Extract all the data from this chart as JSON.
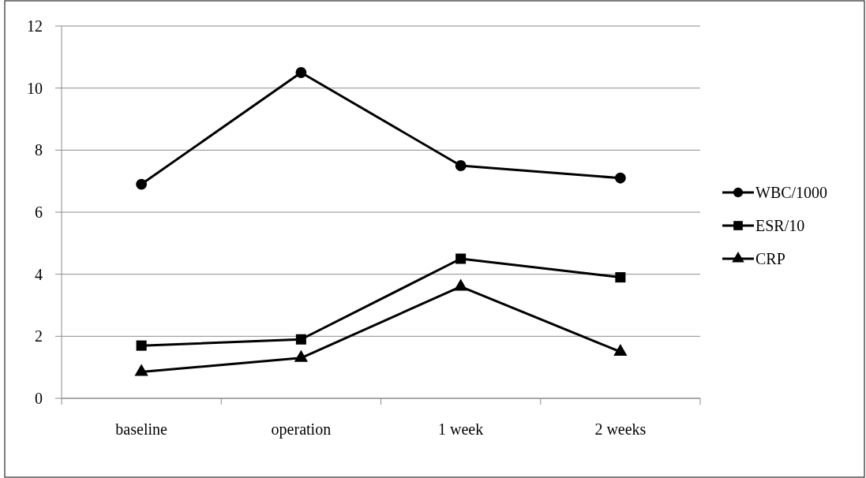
{
  "chart_data": {
    "type": "line",
    "categories": [
      "baseline",
      "operation",
      "1 week",
      "2 weeks"
    ],
    "series": [
      {
        "name": "WBC/1000",
        "color": "#000000",
        "marker": "circle",
        "values": [
          6.9,
          10.5,
          7.5,
          7.1
        ]
      },
      {
        "name": "ESR/10",
        "color": "#000000",
        "marker": "square",
        "values": [
          1.7,
          1.9,
          4.5,
          3.9
        ]
      },
      {
        "name": "CRP",
        "color": "#000000",
        "marker": "triangle",
        "values": [
          0.85,
          1.3,
          3.6,
          1.5
        ]
      }
    ],
    "ylim": [
      0,
      12
    ],
    "yticks": [
      0,
      2,
      4,
      6,
      8,
      10,
      12
    ],
    "grid": "y",
    "legend": "right",
    "line_style": "solid"
  }
}
